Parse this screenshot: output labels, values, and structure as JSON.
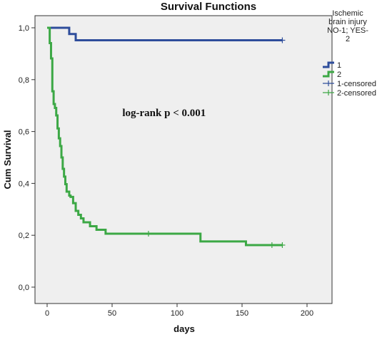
{
  "chart_data": {
    "type": "line",
    "title": "Survival Functions",
    "xlabel": "days",
    "ylabel": "Cum Survival",
    "xlim": [
      0,
      200
    ],
    "ylim": [
      0,
      1
    ],
    "x_ticks": [
      0,
      50,
      100,
      150,
      200
    ],
    "y_ticks": [
      0,
      0.2,
      0.4,
      0.6,
      0.8,
      1.0
    ],
    "x_tick_labels": [
      "0",
      "50",
      "100",
      "150",
      "200"
    ],
    "y_tick_labels": [
      "0,0",
      "0,2",
      "0,4",
      "0,6",
      "0,8",
      "1,0"
    ],
    "step": true,
    "grid": false,
    "plot_background": "#efefef",
    "legend": {
      "title": "Ischemic brain injury NO-1; YES-2",
      "title_lines": [
        "Ischemic",
        "brain injury",
        "NO-1; YES-",
        "2"
      ],
      "placement": "right",
      "entries": [
        {
          "label": "1",
          "kind": "line",
          "color": "#2e4d9b"
        },
        {
          "label": "2",
          "kind": "line",
          "color": "#3ca845"
        },
        {
          "label": "1-censored",
          "kind": "censor",
          "color": "#2e4d9b"
        },
        {
          "label": "2-censored",
          "kind": "censor",
          "color": "#3ca845"
        }
      ]
    },
    "annotations": [
      {
        "text": "log-rank p < 0.001",
        "x": 90,
        "y": 0.66
      }
    ],
    "series": [
      {
        "name": "1",
        "color": "#2e4d9b",
        "x": [
          0,
          17,
          22,
          181
        ],
        "y": [
          1.0,
          0.976,
          0.952,
          0.952
        ],
        "censored": [
          [
            181,
            0.952
          ]
        ]
      },
      {
        "name": "2",
        "color": "#3ca845",
        "x": [
          0,
          2,
          3,
          4,
          5,
          6,
          7,
          8,
          9,
          10,
          11,
          12,
          13,
          14,
          15,
          17,
          18,
          20,
          22,
          24,
          26,
          28,
          33,
          38,
          45,
          118,
          153,
          181
        ],
        "y": [
          1.0,
          0.941,
          0.882,
          0.755,
          0.706,
          0.691,
          0.662,
          0.612,
          0.574,
          0.544,
          0.5,
          0.456,
          0.426,
          0.397,
          0.368,
          0.353,
          0.348,
          0.324,
          0.294,
          0.279,
          0.265,
          0.25,
          0.235,
          0.221,
          0.206,
          0.176,
          0.162,
          0.162
        ],
        "censored": [
          [
            78,
            0.206
          ],
          [
            173,
            0.162
          ],
          [
            181,
            0.162
          ]
        ]
      }
    ]
  }
}
